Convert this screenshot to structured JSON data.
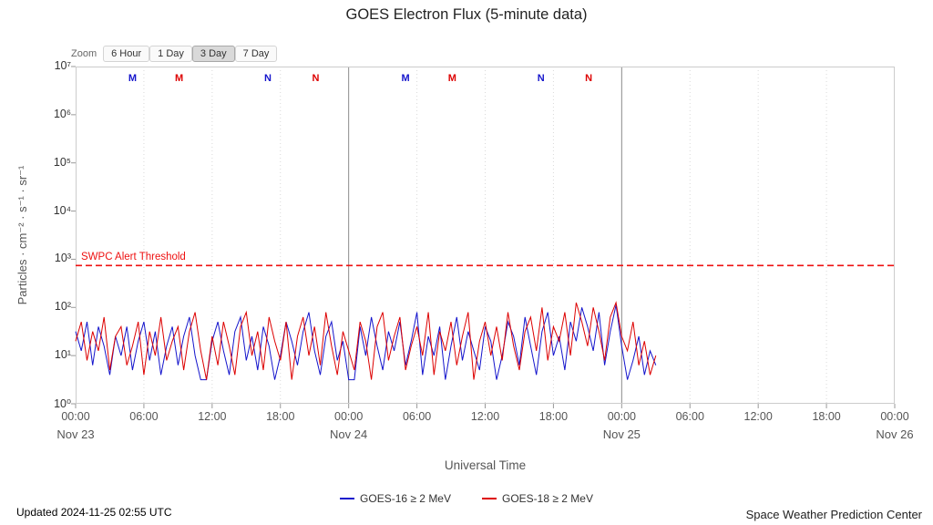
{
  "title": "GOES Electron Flux (5-minute data)",
  "zoom": {
    "label": "Zoom",
    "options": [
      {
        "label": "6 Hour",
        "selected": false
      },
      {
        "label": "1 Day",
        "selected": false
      },
      {
        "label": "3 Day",
        "selected": true
      },
      {
        "label": "7 Day",
        "selected": false
      }
    ]
  },
  "footer": {
    "updated": "Updated 2024-11-25 02:55 UTC",
    "credit": "Space Weather Prediction Center"
  },
  "legend": {
    "items": [
      {
        "label": "GOES-16 ≥ 2 MeV",
        "color": "#1414cc"
      },
      {
        "label": "GOES-18 ≥ 2 MeV",
        "color": "#dd0000"
      }
    ]
  },
  "chart_data": {
    "type": "line",
    "title": "GOES Electron Flux (5-minute data)",
    "xlabel": "Universal Time",
    "ylabel": "Particles · cm⁻² · s⁻¹ · sr⁻¹",
    "x_unit": "hours since 2024-11-23 00:00 UTC",
    "xlim": [
      0,
      72
    ],
    "ylim_log10": [
      0,
      7
    ],
    "yticks": [
      {
        "log": 0,
        "label": "10⁰"
      },
      {
        "log": 1,
        "label": "10¹"
      },
      {
        "log": 2,
        "label": "10²"
      },
      {
        "log": 3,
        "label": "10³"
      },
      {
        "log": 4,
        "label": "10⁴"
      },
      {
        "log": 5,
        "label": "10⁵"
      },
      {
        "log": 6,
        "label": "10⁶"
      },
      {
        "log": 7,
        "label": "10⁷"
      }
    ],
    "xticks": [
      {
        "hour": 0,
        "label": "00:00"
      },
      {
        "hour": 6,
        "label": "06:00"
      },
      {
        "hour": 12,
        "label": "12:00"
      },
      {
        "hour": 18,
        "label": "18:00"
      },
      {
        "hour": 24,
        "label": "00:00"
      },
      {
        "hour": 30,
        "label": "06:00"
      },
      {
        "hour": 36,
        "label": "12:00"
      },
      {
        "hour": 42,
        "label": "18:00"
      },
      {
        "hour": 48,
        "label": "00:00"
      },
      {
        "hour": 54,
        "label": "06:00"
      },
      {
        "hour": 60,
        "label": "12:00"
      },
      {
        "hour": 66,
        "label": "18:00"
      },
      {
        "hour": 72,
        "label": "00:00"
      }
    ],
    "xdates": [
      {
        "hour": 0,
        "label": "Nov 23"
      },
      {
        "hour": 24,
        "label": "Nov 24"
      },
      {
        "hour": 48,
        "label": "Nov 25"
      },
      {
        "hour": 72,
        "label": "Nov 26"
      }
    ],
    "day_boundaries": [
      24,
      48
    ],
    "minor_gridlines": [
      6,
      12,
      18,
      30,
      36,
      42,
      54,
      60,
      66
    ],
    "threshold": {
      "label": "SWPC Alert Threshold",
      "log10_value": 2.87,
      "color": "#ee1111"
    },
    "markers": [
      {
        "label": "M",
        "color": "#1414cc",
        "hour": 5.0
      },
      {
        "label": "M",
        "color": "#dd0000",
        "hour": 9.1
      },
      {
        "label": "N",
        "color": "#1414cc",
        "hour": 16.9
      },
      {
        "label": "N",
        "color": "#dd0000",
        "hour": 21.1
      },
      {
        "label": "M",
        "color": "#1414cc",
        "hour": 29.0
      },
      {
        "label": "M",
        "color": "#dd0000",
        "hour": 33.1
      },
      {
        "label": "N",
        "color": "#1414cc",
        "hour": 40.9
      },
      {
        "label": "N",
        "color": "#dd0000",
        "hour": 45.1
      }
    ],
    "series_x": {
      "start": 0,
      "step": 0.5
    },
    "series": [
      {
        "name": "GOES-16 ≥ 2 MeV",
        "color": "#1414cc",
        "values_log10": [
          1.5,
          1.1,
          1.7,
          0.8,
          1.6,
          1.2,
          0.6,
          1.4,
          1.0,
          1.6,
          0.7,
          1.3,
          1.7,
          0.9,
          1.5,
          0.6,
          1.2,
          1.6,
          0.8,
          1.4,
          1.8,
          1.0,
          0.5,
          0.5,
          1.3,
          1.7,
          1.1,
          0.6,
          1.5,
          1.8,
          0.9,
          1.4,
          0.7,
          1.6,
          1.2,
          0.5,
          1.0,
          1.7,
          1.3,
          0.8,
          1.5,
          1.9,
          1.1,
          0.6,
          1.4,
          1.7,
          0.9,
          1.3,
          0.5,
          0.5,
          1.6,
          1.0,
          1.8,
          1.2,
          0.7,
          1.5,
          1.1,
          1.7,
          0.8,
          1.3,
          1.9,
          0.6,
          1.4,
          1.0,
          1.6,
          0.5,
          1.2,
          1.8,
          0.9,
          1.5,
          1.1,
          0.7,
          1.6,
          1.3,
          0.5,
          1.0,
          1.7,
          1.4,
          0.8,
          1.8,
          1.2,
          0.6,
          1.5,
          1.9,
          1.0,
          1.4,
          0.7,
          1.7,
          1.3,
          2.0,
          1.6,
          1.1,
          1.9,
          0.8,
          1.5,
          2.05,
          1.2,
          0.5,
          0.9,
          1.4,
          0.6,
          1.1,
          0.8
        ]
      },
      {
        "name": "GOES-18 ≥ 2 MeV",
        "color": "#dd0000",
        "values_log10": [
          1.3,
          1.7,
          0.9,
          1.5,
          1.1,
          1.8,
          0.7,
          1.4,
          1.6,
          0.8,
          1.2,
          1.7,
          0.6,
          1.5,
          1.0,
          1.8,
          0.9,
          1.3,
          1.6,
          0.7,
          1.5,
          1.9,
          1.1,
          0.5,
          1.4,
          0.8,
          1.7,
          1.2,
          0.6,
          1.6,
          1.9,
          1.0,
          1.5,
          0.7,
          1.8,
          1.3,
          0.9,
          1.7,
          0.5,
          1.4,
          1.8,
          1.0,
          1.6,
          0.8,
          1.9,
          1.2,
          0.6,
          1.5,
          1.1,
          0.7,
          1.7,
          1.3,
          0.5,
          1.6,
          1.9,
          0.9,
          1.4,
          1.8,
          0.7,
          1.2,
          1.6,
          1.0,
          1.9,
          0.6,
          1.5,
          1.1,
          1.7,
          0.8,
          1.4,
          1.9,
          0.5,
          1.3,
          1.7,
          1.0,
          1.6,
          0.9,
          1.9,
          1.2,
          0.7,
          1.5,
          1.8,
          1.1,
          2.0,
          0.9,
          1.6,
          1.3,
          1.9,
          1.0,
          2.1,
          1.7,
          1.2,
          2.0,
          1.5,
          0.9,
          1.8,
          2.1,
          1.4,
          1.1,
          1.7,
          0.8,
          1.3,
          0.6,
          1.0
        ]
      }
    ]
  }
}
